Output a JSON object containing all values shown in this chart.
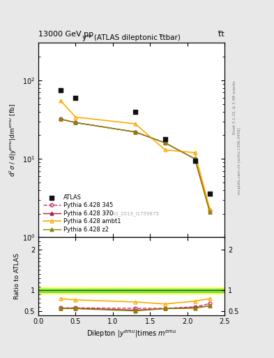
{
  "title_top": "13000 GeV pp",
  "title_top_right": "t̅t",
  "plot_title": "yᵌᵌ (ATLAS dileptonic t̅tbar)",
  "watermark": "ATLAS_2019_I1759875",
  "right_label1": "Rivet 3.1.10, ≥ 3.3M events",
  "right_label2": "mcplots.cern.ch [arXiv:1306.3436]",
  "x_data": [
    0.3,
    0.5,
    1.3,
    1.7,
    2.1,
    2.3
  ],
  "atlas_y": [
    75,
    60,
    40,
    18,
    9.5,
    3.6
  ],
  "py345_y": [
    32,
    29,
    22,
    16,
    10,
    2.2
  ],
  "py370_y": [
    32,
    29,
    22,
    16,
    10,
    2.1
  ],
  "pyambt1_y": [
    55,
    34,
    28,
    13,
    12,
    2.3
  ],
  "pyz2_y": [
    32,
    29,
    22,
    16,
    10,
    2.1
  ],
  "ratio_x": [
    0.3,
    0.5,
    1.3,
    1.7,
    2.1,
    2.3
  ],
  "ratio_py345": [
    0.575,
    0.575,
    0.565,
    0.565,
    0.6,
    0.68
  ],
  "ratio_py370": [
    0.565,
    0.565,
    0.52,
    0.555,
    0.585,
    0.625
  ],
  "ratio_pyambt1": [
    0.8,
    0.77,
    0.72,
    0.67,
    0.74,
    0.8
  ],
  "ratio_pyz2": [
    0.56,
    0.555,
    0.5,
    0.555,
    0.565,
    0.625
  ],
  "color_atlas": "#111111",
  "color_py345": "#cc3366",
  "color_py370": "#aa2244",
  "color_pyambt1": "#ffaa00",
  "color_pyz2": "#888800",
  "ylim_main": [
    1,
    300
  ],
  "ylim_ratio": [
    0.4,
    2.3
  ],
  "xlim": [
    0,
    2.5
  ],
  "bg_color": "#e8e8e8"
}
